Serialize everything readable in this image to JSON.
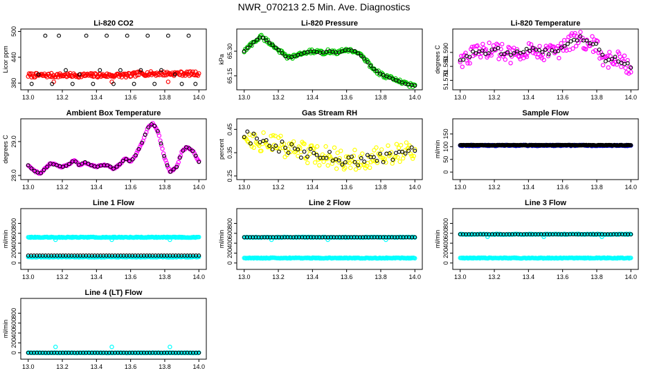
{
  "page_title": "NWR_070213  2.5 Min. Ave. Diagnostics",
  "colors": {
    "black": "#000000",
    "red": "#ff0000",
    "green": "#00cc00",
    "magenta": "#ff00ff",
    "yellow": "#ffff00",
    "blue": "#0000cc",
    "cyan": "#00ffff"
  },
  "chart_data": [
    {
      "type": "scatter",
      "title": "Li-820 CO2",
      "ylabel": "Licor ppm",
      "xlim": [
        13.0,
        14.0
      ],
      "ylim": [
        370,
        500
      ],
      "xticks": [
        "13.0",
        "13.2",
        "13.4",
        "13.6",
        "13.8",
        "14.0"
      ],
      "yticks": [
        "380",
        "440",
        "500"
      ],
      "ytick_values": [
        380,
        440,
        500
      ],
      "series": [
        {
          "name": "raw",
          "color": "red",
          "style": "band",
          "x": [
            13.0,
            13.6,
            13.65,
            14.0
          ],
          "y": [
            398,
            398,
            402,
            402
          ],
          "spread": 5
        },
        {
          "name": "raw outliers",
          "color": "red",
          "style": "points",
          "x": [
            13.15,
            13.49,
            13.82
          ],
          "y": [
            383,
            383,
            383
          ]
        },
        {
          "name": "average",
          "color": "black",
          "style": "points",
          "x": [
            13.02,
            13.06,
            13.1,
            13.14,
            13.18,
            13.22,
            13.26,
            13.3,
            13.34,
            13.38,
            13.42,
            13.46,
            13.5,
            13.54,
            13.58,
            13.62,
            13.66,
            13.7,
            13.74,
            13.78,
            13.82,
            13.86,
            13.9,
            13.94,
            13.98
          ],
          "y": [
            378,
            400,
            490,
            378,
            490,
            410,
            378,
            400,
            490,
            378,
            410,
            490,
            378,
            410,
            490,
            378,
            410,
            490,
            378,
            410,
            490,
            400,
            378,
            490,
            378
          ]
        }
      ]
    },
    {
      "type": "scatter",
      "title": "Li-820 Pressure",
      "ylabel": "kPa",
      "xlim": [
        13.0,
        14.0
      ],
      "ylim": [
        65.08,
        65.42
      ],
      "xticks": [
        "13.0",
        "13.2",
        "13.4",
        "13.6",
        "13.8",
        "14.0"
      ],
      "yticks": [
        "65.15",
        "65.30"
      ],
      "ytick_values": [
        65.15,
        65.3
      ],
      "series": [
        {
          "name": "raw",
          "color": "green",
          "style": "curve",
          "spread": 0.012,
          "x": [
            13.0,
            13.05,
            13.1,
            13.15,
            13.2,
            13.25,
            13.3,
            13.35,
            13.4,
            13.45,
            13.5,
            13.55,
            13.6,
            13.65,
            13.7,
            13.75,
            13.8,
            13.85,
            13.9,
            13.95,
            14.0
          ],
          "y": [
            65.3,
            65.35,
            65.39,
            65.35,
            65.31,
            65.26,
            65.27,
            65.29,
            65.3,
            65.29,
            65.3,
            65.29,
            65.31,
            65.3,
            65.26,
            65.2,
            65.16,
            65.14,
            65.12,
            65.1,
            65.09
          ]
        },
        {
          "name": "average",
          "color": "black",
          "style": "curve-points",
          "spread": 0,
          "x": [
            13.0,
            13.05,
            13.1,
            13.15,
            13.2,
            13.25,
            13.3,
            13.35,
            13.4,
            13.45,
            13.5,
            13.55,
            13.6,
            13.65,
            13.7,
            13.75,
            13.8,
            13.85,
            13.9,
            13.95,
            14.0
          ],
          "y": [
            65.3,
            65.35,
            65.39,
            65.35,
            65.31,
            65.26,
            65.27,
            65.29,
            65.3,
            65.29,
            65.3,
            65.29,
            65.31,
            65.3,
            65.26,
            65.2,
            65.16,
            65.14,
            65.12,
            65.1,
            65.09
          ]
        }
      ]
    },
    {
      "type": "scatter",
      "title": "Li-820 Temperature",
      "ylabel": "degrees C",
      "xlim": [
        13.0,
        14.0
      ],
      "ylim": [
        51.565,
        51.605
      ],
      "xticks": [
        "13.0",
        "13.2",
        "13.4",
        "13.6",
        "13.8",
        "14.0"
      ],
      "yticks": [
        "51.570",
        "51.580",
        "51.590"
      ],
      "ytick_values": [
        51.57,
        51.58,
        51.59
      ],
      "series": [
        {
          "name": "raw",
          "color": "magenta",
          "style": "curve",
          "spread": 0.006,
          "x": [
            13.0,
            13.1,
            13.2,
            13.3,
            13.4,
            13.5,
            13.6,
            13.65,
            13.7,
            13.75,
            13.8,
            13.85,
            13.9,
            13.95,
            14.0
          ],
          "y": [
            51.585,
            51.59,
            51.592,
            51.588,
            51.593,
            51.59,
            51.592,
            51.598,
            51.6,
            51.597,
            51.594,
            51.583,
            51.586,
            51.584,
            51.578
          ]
        },
        {
          "name": "average",
          "color": "black",
          "style": "curve-points",
          "spread": 0.002,
          "x": [
            13.0,
            13.1,
            13.2,
            13.3,
            13.4,
            13.5,
            13.6,
            13.65,
            13.7,
            13.75,
            13.8,
            13.85,
            13.9,
            13.95,
            14.0
          ],
          "y": [
            51.585,
            51.59,
            51.592,
            51.588,
            51.593,
            51.59,
            51.592,
            51.598,
            51.6,
            51.597,
            51.594,
            51.583,
            51.586,
            51.584,
            51.578
          ]
        }
      ]
    },
    {
      "type": "scatter",
      "title": "Ambient Box Temperature",
      "ylabel": "degrees C",
      "xlim": [
        13.0,
        14.0
      ],
      "ylim": [
        27.95,
        29.6
      ],
      "xticks": [
        "13.0",
        "13.2",
        "13.4",
        "13.6",
        "13.8",
        "14.0"
      ],
      "yticks": [
        "28.0",
        "29.0"
      ],
      "ytick_values": [
        28.0,
        29.0
      ],
      "series": [
        {
          "name": "raw",
          "color": "magenta",
          "style": "curve",
          "spread": 0.02,
          "x": [
            13.0,
            13.03,
            13.07,
            13.1,
            13.13,
            13.17,
            13.2,
            13.23,
            13.27,
            13.3,
            13.33,
            13.37,
            13.4,
            13.43,
            13.47,
            13.5,
            13.53,
            13.57,
            13.6,
            13.63,
            13.67,
            13.7,
            13.73,
            13.76,
            13.8,
            13.83,
            13.87,
            13.9,
            13.93,
            13.97,
            14.0
          ],
          "y": [
            28.3,
            28.15,
            28.05,
            28.2,
            28.35,
            28.3,
            28.25,
            28.3,
            28.45,
            28.3,
            28.4,
            28.3,
            28.25,
            28.3,
            28.3,
            28.2,
            28.3,
            28.5,
            28.4,
            28.6,
            29.0,
            29.4,
            29.55,
            29.3,
            28.5,
            28.1,
            28.25,
            28.7,
            28.85,
            28.7,
            28.4
          ]
        },
        {
          "name": "average",
          "color": "black",
          "style": "curve-points",
          "spread": 0,
          "x": [
            13.0,
            13.03,
            13.07,
            13.1,
            13.13,
            13.17,
            13.2,
            13.23,
            13.27,
            13.3,
            13.33,
            13.37,
            13.4,
            13.43,
            13.47,
            13.5,
            13.53,
            13.57,
            13.6,
            13.63,
            13.67,
            13.7,
            13.73,
            13.76,
            13.8,
            13.83,
            13.87,
            13.9,
            13.93,
            13.97,
            14.0
          ],
          "y": [
            28.3,
            28.15,
            28.05,
            28.2,
            28.35,
            28.3,
            28.25,
            28.3,
            28.45,
            28.3,
            28.4,
            28.3,
            28.25,
            28.3,
            28.3,
            28.2,
            28.3,
            28.5,
            28.4,
            28.6,
            29.0,
            29.4,
            29.55,
            29.3,
            28.5,
            28.1,
            28.25,
            28.7,
            28.85,
            28.7,
            28.4
          ]
        }
      ]
    },
    {
      "type": "scatter",
      "title": "Gas Stream RH",
      "ylabel": "percent",
      "xlim": [
        13.0,
        14.0
      ],
      "ylim": [
        0.245,
        0.485
      ],
      "xticks": [
        "13.0",
        "13.2",
        "13.4",
        "13.6",
        "13.8",
        "14.0"
      ],
      "yticks": [
        "0.25",
        "0.35",
        "0.45"
      ],
      "ytick_values": [
        0.25,
        0.35,
        0.45
      ],
      "series": [
        {
          "name": "raw",
          "color": "yellow",
          "style": "curve",
          "spread": 0.045,
          "x": [
            13.0,
            13.1,
            13.2,
            13.3,
            13.4,
            13.5,
            13.6,
            13.7,
            13.8,
            13.9,
            14.0
          ],
          "y": [
            0.42,
            0.4,
            0.38,
            0.36,
            0.34,
            0.33,
            0.32,
            0.32,
            0.33,
            0.35,
            0.36
          ]
        },
        {
          "name": "average",
          "color": "black",
          "style": "curve-points",
          "spread": 0.025,
          "x": [
            13.0,
            13.1,
            13.2,
            13.3,
            13.4,
            13.5,
            13.6,
            13.7,
            13.8,
            13.9,
            14.0
          ],
          "y": [
            0.42,
            0.4,
            0.38,
            0.36,
            0.34,
            0.33,
            0.32,
            0.32,
            0.33,
            0.35,
            0.36
          ]
        }
      ]
    },
    {
      "type": "scatter",
      "title": "Sample Flow",
      "ylabel": "ml/min",
      "xlim": [
        13.0,
        14.0
      ],
      "ylim": [
        -20,
        200
      ],
      "xticks": [
        "13.0",
        "13.2",
        "13.4",
        "13.6",
        "13.8",
        "14.0"
      ],
      "yticks": [
        "0",
        "50",
        "100",
        "150"
      ],
      "ytick_values": [
        0,
        50,
        100,
        150
      ],
      "series": [
        {
          "name": "average",
          "color": "blue",
          "style": "band",
          "x": [
            13.0,
            14.0
          ],
          "y": [
            105,
            105
          ],
          "spread": 2
        },
        {
          "name": "average outline",
          "color": "black",
          "style": "band",
          "x": [
            13.0,
            14.0
          ],
          "y": [
            106,
            106
          ],
          "spread": 1
        }
      ]
    },
    {
      "type": "scatter",
      "title": "Line 1 Flow",
      "ylabel": "ml/min",
      "xlim": [
        13.0,
        14.0
      ],
      "ylim": [
        -80,
        1050
      ],
      "xticks": [
        "13.0",
        "13.2",
        "13.4",
        "13.6",
        "13.8",
        "14.0"
      ],
      "yticks": [
        "0",
        "200",
        "400",
        "600",
        "800"
      ],
      "ytick_values": [
        0,
        200,
        400,
        600,
        800
      ],
      "series": [
        {
          "name": "raw",
          "color": "cyan",
          "style": "band",
          "x": [
            13.0,
            14.0
          ],
          "y": [
            520,
            520
          ],
          "spread": 8
        },
        {
          "name": "raw low",
          "color": "cyan",
          "style": "band",
          "x": [
            13.0,
            14.0
          ],
          "y": [
            120,
            120
          ],
          "spread": 6
        },
        {
          "name": "raw outliers",
          "color": "cyan",
          "style": "points",
          "x": [
            13.16,
            13.49,
            13.83
          ],
          "y": [
            470,
            470,
            470
          ]
        },
        {
          "name": "average",
          "color": "black",
          "style": "band",
          "x": [
            13.0,
            14.0
          ],
          "y": [
            150,
            150
          ],
          "spread": 0
        }
      ]
    },
    {
      "type": "scatter",
      "title": "Line 2 Flow",
      "ylabel": "ml/min",
      "xlim": [
        13.0,
        14.0
      ],
      "ylim": [
        -80,
        1050
      ],
      "xticks": [
        "13.0",
        "13.2",
        "13.4",
        "13.6",
        "13.8",
        "14.0"
      ],
      "yticks": [
        "0",
        "200",
        "400",
        "600",
        "800"
      ],
      "ytick_values": [
        0,
        200,
        400,
        600,
        800
      ],
      "series": [
        {
          "name": "raw",
          "color": "cyan",
          "style": "band",
          "x": [
            13.0,
            14.0
          ],
          "y": [
            520,
            520
          ],
          "spread": 8
        },
        {
          "name": "raw low",
          "color": "cyan",
          "style": "band",
          "x": [
            13.0,
            14.0
          ],
          "y": [
            100,
            100
          ],
          "spread": 8
        },
        {
          "name": "raw outliers",
          "color": "cyan",
          "style": "points",
          "x": [
            13.16,
            13.49,
            13.83
          ],
          "y": [
            470,
            470,
            470
          ]
        },
        {
          "name": "average",
          "color": "black",
          "style": "band",
          "x": [
            13.0,
            14.0
          ],
          "y": [
            520,
            520
          ],
          "spread": 0
        }
      ]
    },
    {
      "type": "scatter",
      "title": "Line 3 Flow",
      "ylabel": "ml/min",
      "xlim": [
        13.0,
        14.0
      ],
      "ylim": [
        -80,
        1050
      ],
      "xticks": [
        "13.0",
        "13.2",
        "13.4",
        "13.6",
        "13.8",
        "14.0"
      ],
      "yticks": [
        "0",
        "200",
        "400",
        "600",
        "800"
      ],
      "ytick_values": [
        0,
        200,
        400,
        600,
        800
      ],
      "series": [
        {
          "name": "raw",
          "color": "cyan",
          "style": "band",
          "x": [
            13.0,
            14.0
          ],
          "y": [
            580,
            580
          ],
          "spread": 8
        },
        {
          "name": "raw low",
          "color": "cyan",
          "style": "band",
          "x": [
            13.0,
            14.0
          ],
          "y": [
            100,
            100
          ],
          "spread": 8
        },
        {
          "name": "raw outliers",
          "color": "cyan",
          "style": "points",
          "x": [
            13.16,
            13.49,
            13.83
          ],
          "y": [
            530,
            530,
            530
          ]
        },
        {
          "name": "average",
          "color": "black",
          "style": "band",
          "x": [
            13.0,
            14.0
          ],
          "y": [
            580,
            580
          ],
          "spread": 0
        }
      ]
    },
    {
      "type": "scatter",
      "title": "Line 4 (LT) Flow",
      "ylabel": "ml/min",
      "xlim": [
        13.0,
        14.0
      ],
      "ylim": [
        -80,
        1050
      ],
      "xticks": [
        "13.0",
        "13.2",
        "13.4",
        "13.6",
        "13.8",
        "14.0"
      ],
      "yticks": [
        "0",
        "200",
        "400",
        "600",
        "800"
      ],
      "ytick_values": [
        0,
        200,
        400,
        600,
        800
      ],
      "series": [
        {
          "name": "raw",
          "color": "cyan",
          "style": "band",
          "x": [
            13.0,
            14.0
          ],
          "y": [
            0,
            0
          ],
          "spread": 4
        },
        {
          "name": "raw outliers",
          "color": "cyan",
          "style": "points",
          "x": [
            13.16,
            13.49,
            13.83
          ],
          "y": [
            120,
            120,
            120
          ]
        },
        {
          "name": "average",
          "color": "black",
          "style": "band",
          "x": [
            13.0,
            14.0
          ],
          "y": [
            0,
            0
          ],
          "spread": 0
        }
      ]
    }
  ]
}
